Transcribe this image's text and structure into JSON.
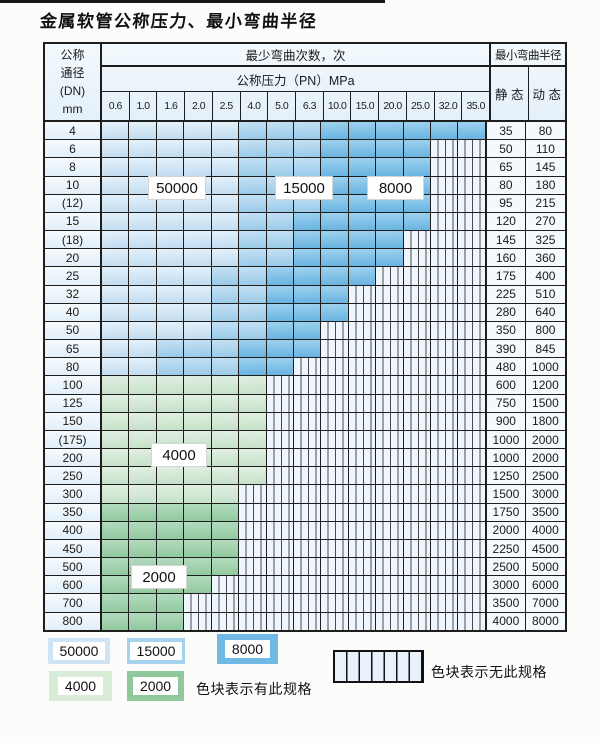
{
  "title": "金属软管公称压力、最小弯曲半径",
  "table": {
    "corner": {
      "l1": "公称",
      "l2": "通径",
      "l3": "(DN)",
      "l4": "mm"
    },
    "bend_header": "最少弯曲次数，次",
    "pressure_header": "公称压力（PN）MPa",
    "radius_header": "最小弯曲半径",
    "static_header": "静 态",
    "dynamic_header": "动 态",
    "pressures": [
      "0.6",
      "1.0",
      "1.6",
      "2.0",
      "2.5",
      "4.0",
      "5.0",
      "6.3",
      "10.0",
      "15.0",
      "20.0",
      "25.0",
      "32.0",
      "35.0"
    ],
    "rows": [
      {
        "dn": "4",
        "region": "blue",
        "avail": 14,
        "s15": 5,
        "s8": 8,
        "static": "35",
        "dynamic": "80"
      },
      {
        "dn": "6",
        "region": "blue",
        "avail": 12,
        "s15": 5,
        "s8": 8,
        "static": "50",
        "dynamic": "110"
      },
      {
        "dn": "8",
        "region": "blue",
        "avail": 12,
        "s15": 5,
        "s8": 8,
        "static": "65",
        "dynamic": "145"
      },
      {
        "dn": "10",
        "region": "blue",
        "avail": 12,
        "s15": 5,
        "s8": 8,
        "static": "80",
        "dynamic": "180"
      },
      {
        "dn": "(12)",
        "region": "blue",
        "avail": 12,
        "s15": 5,
        "s8": 8,
        "static": "95",
        "dynamic": "215"
      },
      {
        "dn": "15",
        "region": "blue",
        "avail": 12,
        "s15": 5,
        "s8": 7,
        "static": "120",
        "dynamic": "270"
      },
      {
        "dn": "(18)",
        "region": "blue",
        "avail": 11,
        "s15": 5,
        "s8": 7,
        "static": "145",
        "dynamic": "325"
      },
      {
        "dn": "20",
        "region": "blue",
        "avail": 11,
        "s15": 5,
        "s8": 7,
        "static": "160",
        "dynamic": "360"
      },
      {
        "dn": "25",
        "region": "blue",
        "avail": 10,
        "s15": 4,
        "s8": 6,
        "static": "175",
        "dynamic": "400"
      },
      {
        "dn": "32",
        "region": "blue",
        "avail": 9,
        "s15": 4,
        "s8": 6,
        "static": "225",
        "dynamic": "510"
      },
      {
        "dn": "40",
        "region": "blue",
        "avail": 9,
        "s15": 4,
        "s8": 6,
        "static": "280",
        "dynamic": "640"
      },
      {
        "dn": "50",
        "region": "blue",
        "avail": 8,
        "s15": 4,
        "s8": 6,
        "static": "350",
        "dynamic": "800"
      },
      {
        "dn": "65",
        "region": "blue",
        "avail": 8,
        "s15": 2,
        "s8": 5,
        "static": "390",
        "dynamic": "845"
      },
      {
        "dn": "80",
        "region": "blue",
        "avail": 7,
        "s15": 2,
        "s8": 5,
        "static": "480",
        "dynamic": "1000"
      },
      {
        "dn": "100",
        "region": "green",
        "avail": 6,
        "shade": "4000",
        "static": "600",
        "dynamic": "1200"
      },
      {
        "dn": "125",
        "region": "green",
        "avail": 6,
        "shade": "4000",
        "static": "750",
        "dynamic": "1500"
      },
      {
        "dn": "150",
        "region": "green",
        "avail": 6,
        "shade": "4000",
        "static": "900",
        "dynamic": "1800"
      },
      {
        "dn": "(175)",
        "region": "green",
        "avail": 6,
        "shade": "4000",
        "static": "1000",
        "dynamic": "2000"
      },
      {
        "dn": "200",
        "region": "green",
        "avail": 6,
        "shade": "4000",
        "static": "1000",
        "dynamic": "2000"
      },
      {
        "dn": "250",
        "region": "green",
        "avail": 6,
        "shade": "4000",
        "static": "1250",
        "dynamic": "2500"
      },
      {
        "dn": "300",
        "region": "green",
        "avail": 5,
        "shade": "4000",
        "static": "1500",
        "dynamic": "3000"
      },
      {
        "dn": "350",
        "region": "green",
        "avail": 5,
        "shade": "2000",
        "static": "1750",
        "dynamic": "3500"
      },
      {
        "dn": "400",
        "region": "green",
        "avail": 5,
        "shade": "2000",
        "static": "2000",
        "dynamic": "4000"
      },
      {
        "dn": "450",
        "region": "green",
        "avail": 5,
        "shade": "2000",
        "static": "2250",
        "dynamic": "4500"
      },
      {
        "dn": "500",
        "region": "green",
        "avail": 5,
        "shade": "2000",
        "static": "2500",
        "dynamic": "5000"
      },
      {
        "dn": "600",
        "region": "green",
        "avail": 4,
        "shade": "2000",
        "static": "3000",
        "dynamic": "6000"
      },
      {
        "dn": "700",
        "region": "green",
        "avail": 3,
        "shade": "2000",
        "static": "3500",
        "dynamic": "7000"
      },
      {
        "dn": "800",
        "region": "green",
        "avail": 3,
        "shade": "2000",
        "static": "4000",
        "dynamic": "8000"
      }
    ]
  },
  "overlays": {
    "b50000": "50000",
    "b15000": "15000",
    "b8000": "8000",
    "b4000": "4000",
    "b2000": "2000"
  },
  "legend": {
    "items": [
      {
        "label": "50000",
        "color": "#cfe4f5"
      },
      {
        "label": "15000",
        "color": "#a6d2ee"
      },
      {
        "label": "8000",
        "color": "#6fb9e4"
      },
      {
        "label": "4000",
        "color": "#d8ecd8"
      },
      {
        "label": "2000",
        "color": "#90c89b"
      }
    ],
    "has_spec_text": "色块表示有此规格",
    "no_spec_text": "色块表示无此规格"
  }
}
